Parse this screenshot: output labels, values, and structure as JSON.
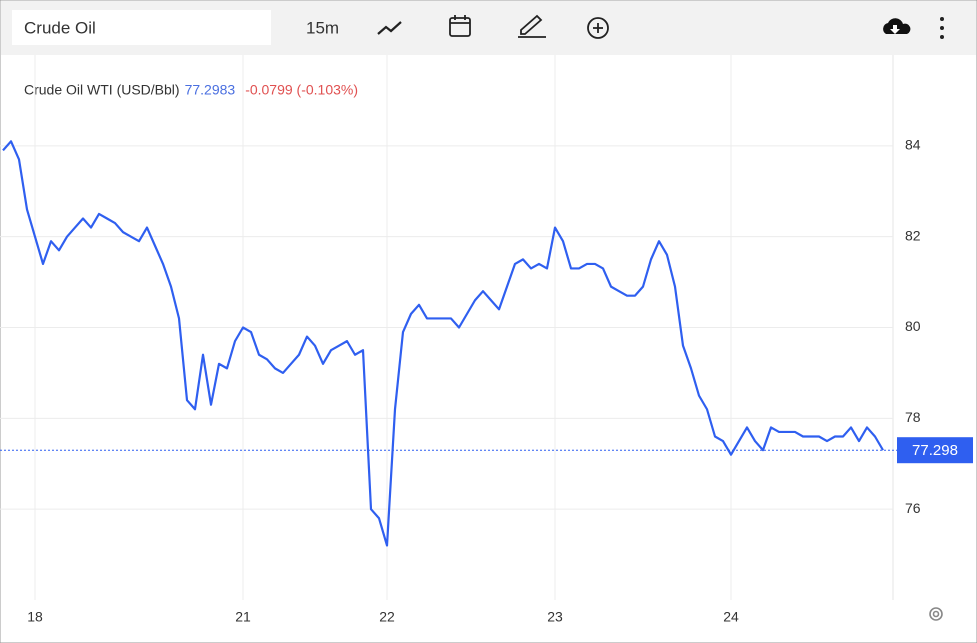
{
  "toolbar": {
    "search": "Crude Oil",
    "interval": "15m"
  },
  "chart_data": {
    "type": "line",
    "legend": {
      "name": "Crude Oil WTI (USD/Bbl)",
      "price": "77.2983",
      "change": "-0.0799 (-0.103%)"
    },
    "x": [
      0,
      1,
      2,
      3,
      4,
      5,
      6,
      7,
      8,
      9,
      10,
      11,
      12,
      13,
      14,
      15,
      16,
      17,
      18,
      19,
      20,
      21,
      22,
      23,
      24,
      25,
      26,
      27,
      28,
      29,
      30,
      31,
      32,
      33,
      34,
      35,
      36,
      37,
      38,
      39,
      40,
      41,
      42,
      43,
      44,
      45,
      46,
      47,
      48,
      49,
      50,
      51,
      52,
      53,
      54,
      55,
      56,
      57,
      58,
      59,
      60,
      61,
      62,
      63,
      64,
      65,
      66,
      67,
      68,
      69,
      70,
      71,
      72,
      73,
      74,
      75,
      76,
      77,
      78,
      79,
      80,
      81,
      82,
      83,
      84,
      85,
      86,
      87,
      88,
      89,
      90,
      91,
      92,
      93,
      94,
      95,
      96,
      97,
      98,
      99,
      100,
      101,
      102,
      103,
      104,
      105,
      106,
      107,
      108,
      109,
      110
    ],
    "series": [
      {
        "name": "Crude Oil WTI (USD/Bbl)",
        "color": "#2f5ff0",
        "values": [
          83.9,
          84.1,
          83.7,
          82.6,
          82.0,
          81.4,
          81.9,
          81.7,
          82.0,
          82.2,
          82.4,
          82.2,
          82.5,
          82.4,
          82.3,
          82.1,
          82.0,
          81.9,
          82.2,
          81.8,
          81.4,
          80.9,
          80.2,
          78.4,
          78.2,
          79.4,
          78.3,
          79.2,
          79.1,
          79.7,
          80.0,
          79.9,
          79.4,
          79.3,
          79.1,
          79.0,
          79.2,
          79.4,
          79.8,
          79.6,
          79.2,
          79.5,
          79.6,
          79.7,
          79.4,
          79.5,
          76.0,
          75.8,
          75.2,
          78.2,
          79.9,
          80.3,
          80.5,
          80.2,
          80.2,
          80.2,
          80.2,
          80.0,
          80.3,
          80.6,
          80.8,
          80.6,
          80.4,
          80.9,
          81.4,
          81.5,
          81.3,
          81.4,
          81.3,
          82.2,
          81.9,
          81.3,
          81.3,
          81.4,
          81.4,
          81.3,
          80.9,
          80.8,
          80.7,
          80.7,
          80.9,
          81.5,
          81.9,
          81.6,
          80.9,
          79.6,
          79.1,
          78.5,
          78.2,
          77.6,
          77.5,
          77.2,
          77.5,
          77.8,
          77.5,
          77.3,
          77.8,
          77.7,
          77.7,
          77.7,
          77.6,
          77.6,
          77.6,
          77.5,
          77.6,
          77.6,
          77.8,
          77.5,
          77.8,
          77.6,
          77.3
        ]
      }
    ],
    "xlim": [
      0,
      110
    ],
    "xticks": [
      {
        "value": 4,
        "label": "18"
      },
      {
        "value": 30,
        "label": "21"
      },
      {
        "value": 48,
        "label": "22"
      },
      {
        "value": 69,
        "label": "23"
      },
      {
        "value": 91,
        "label": "24"
      }
    ],
    "ylim": [
      74,
      86
    ],
    "yticks": [
      76,
      78,
      80,
      82,
      84
    ],
    "grid": true,
    "price_line": 77.2983,
    "price_tag": "77.298"
  }
}
